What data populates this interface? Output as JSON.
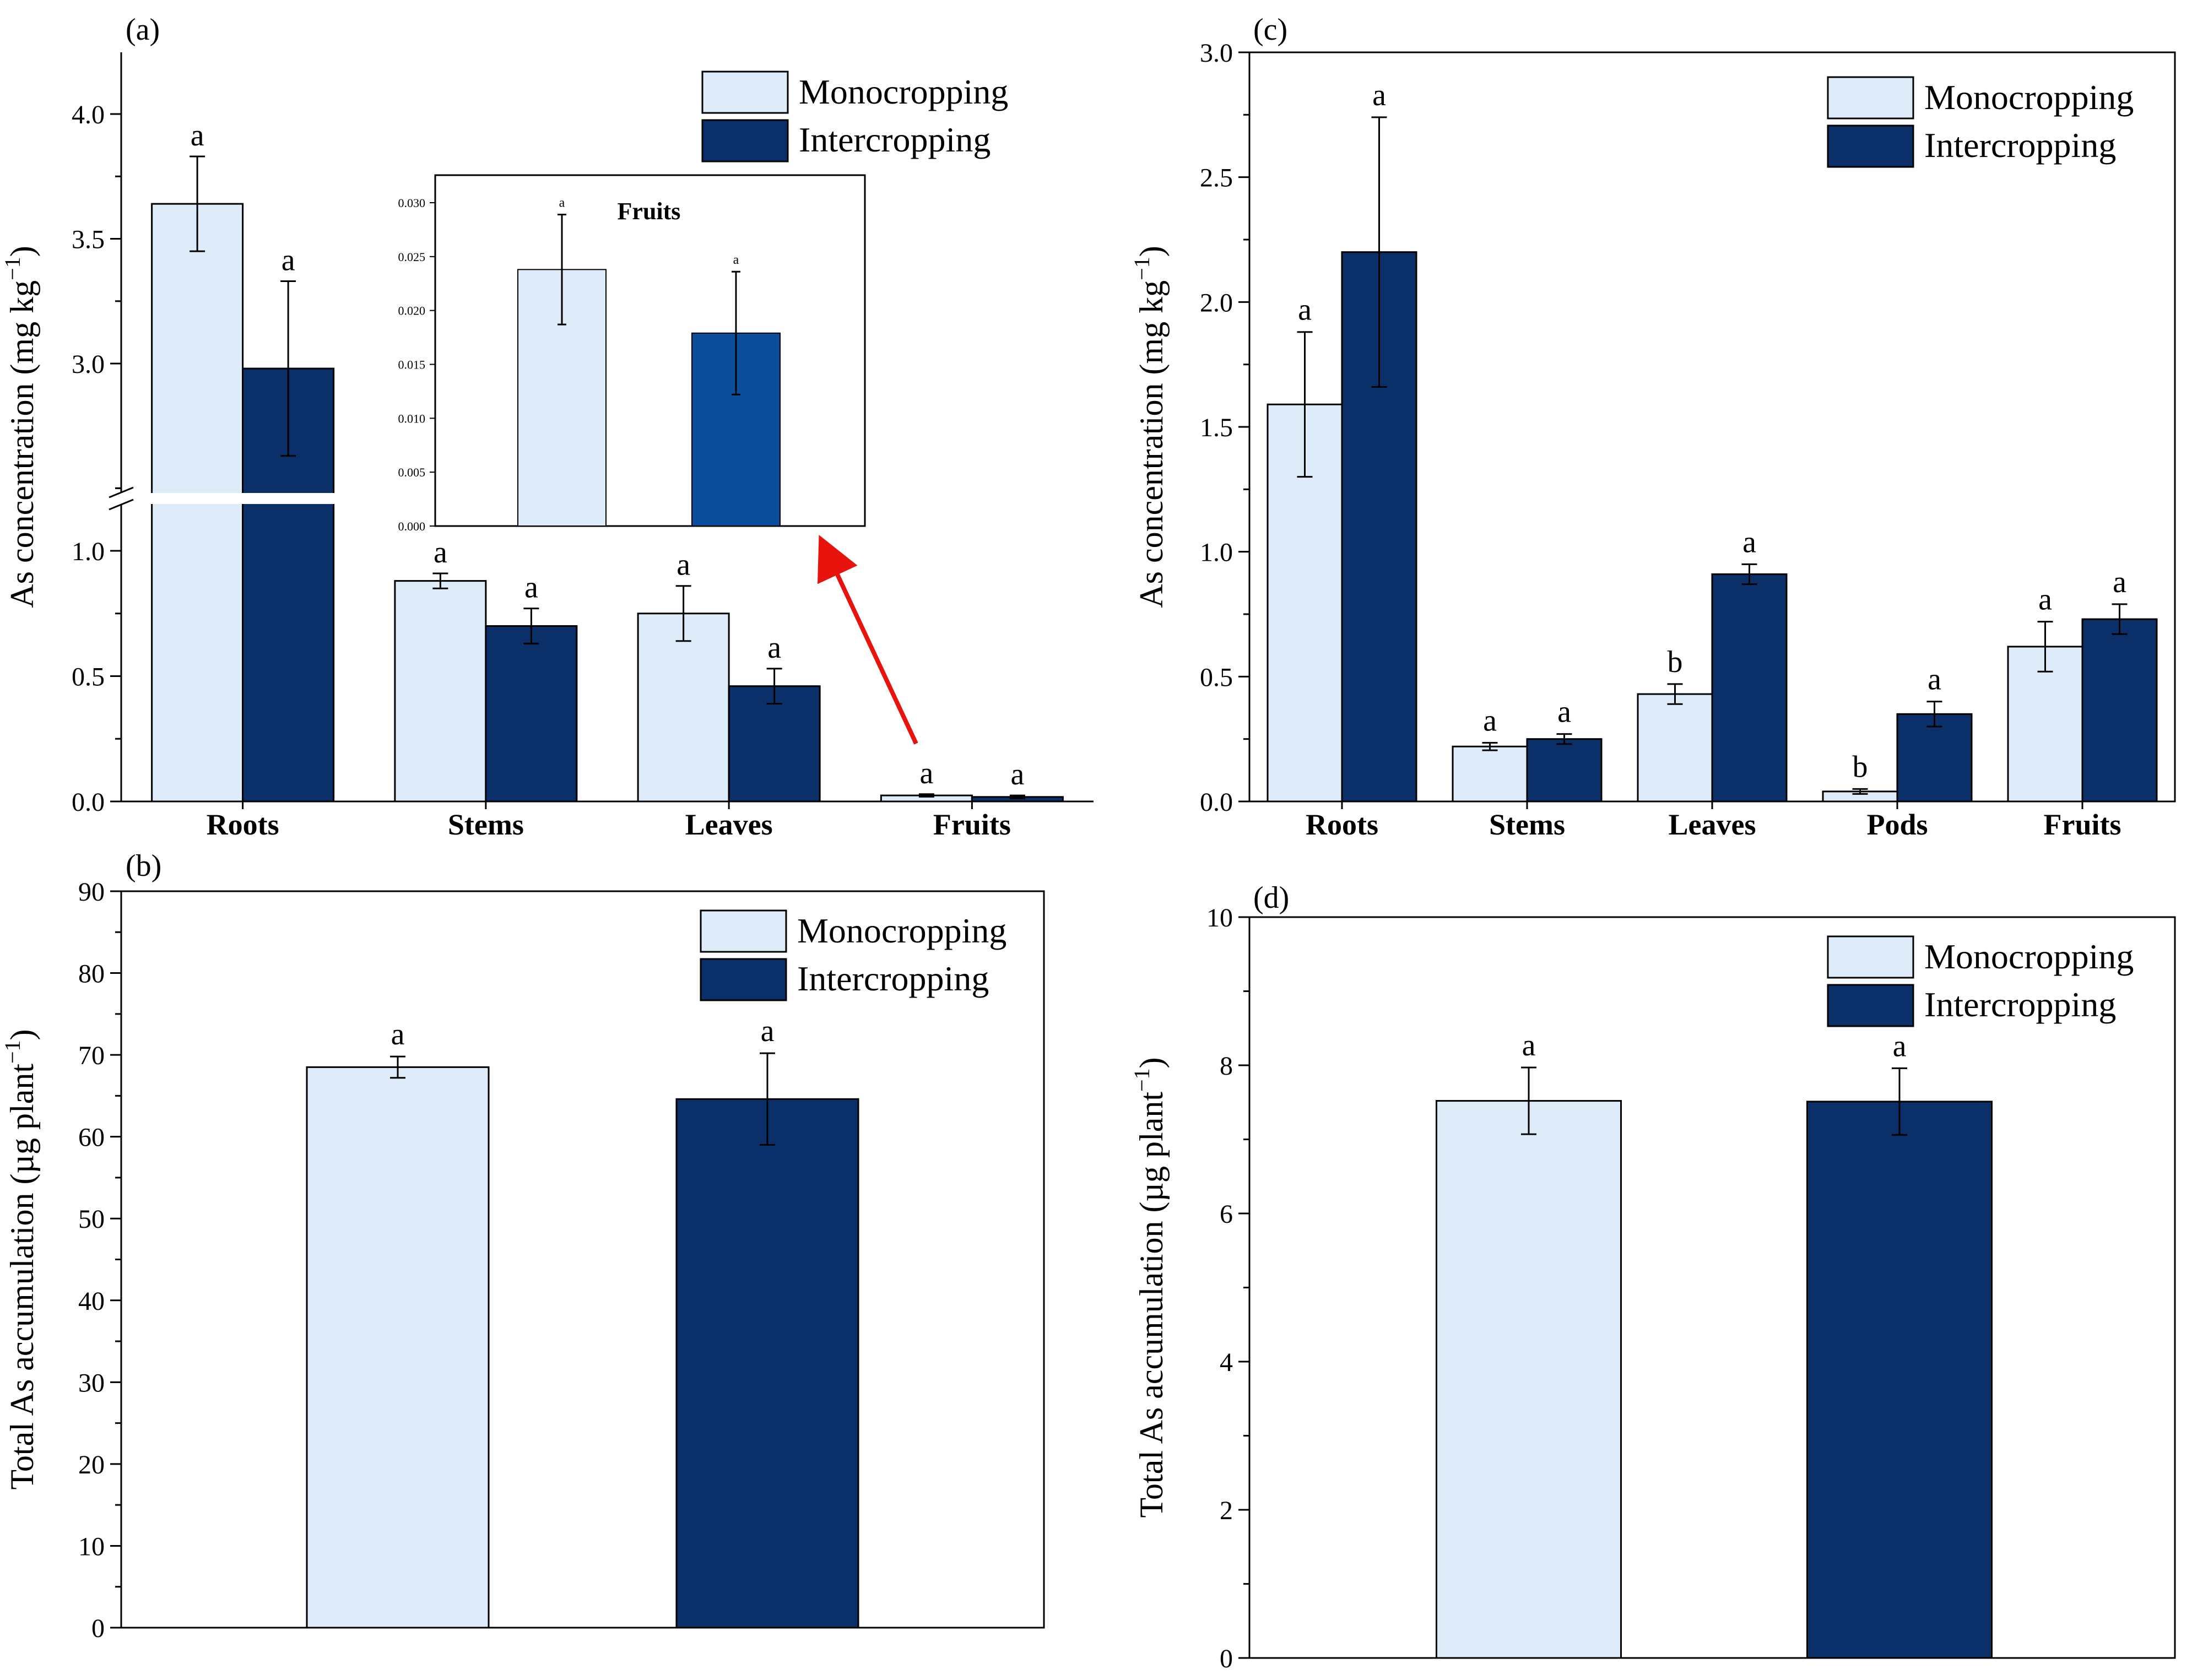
{
  "colors": {
    "monocropping": "#ddecf8",
    "intercropping": "#0a2f69",
    "inset_intercropping": "#0a4e9c",
    "arrow": "#e8130c",
    "axis": "#000000"
  },
  "legend": {
    "mono": "Monocropping",
    "inter": "Intercropping"
  },
  "chart_data": [
    {
      "id": "a",
      "panel_label": "(a)",
      "type": "bar",
      "ylabel": "As concentration (mg kg",
      "ylabel_sup": "−1",
      "ylabel_close": ")",
      "categories": [
        "Roots",
        "Stems",
        "Leaves",
        "Fruits"
      ],
      "y_break": {
        "lower": [
          0,
          1.2
        ],
        "upper": [
          2.5,
          4.3
        ]
      },
      "lower_ticks": [
        "0.0",
        "0.5",
        "1.0"
      ],
      "upper_ticks": [
        "3.0",
        "3.5",
        "4.0"
      ],
      "series": [
        {
          "name": "Monocropping",
          "values": [
            3.64,
            0.88,
            0.75,
            0.024
          ],
          "errors": [
            0.19,
            0.03,
            0.11,
            0.005
          ],
          "letters": [
            "a",
            "a",
            "a",
            "a"
          ]
        },
        {
          "name": "Intercropping",
          "values": [
            2.98,
            0.7,
            0.46,
            0.018
          ],
          "errors": [
            0.35,
            0.07,
            0.07,
            0.006
          ],
          "letters": [
            "a",
            "a",
            "a",
            "a"
          ]
        }
      ],
      "inset": {
        "title": "Fruits",
        "ylim": [
          0,
          0.03
        ],
        "ticks": [
          "0.000",
          "0.005",
          "0.010",
          "0.015",
          "0.020",
          "0.025",
          "0.030"
        ],
        "values": [
          0.0238,
          0.0179
        ],
        "errors": [
          0.0051,
          0.0057
        ],
        "letters": [
          "a",
          "a"
        ]
      }
    },
    {
      "id": "b",
      "panel_label": "(b)",
      "type": "bar",
      "ylabel": "Total As accumulation (µg plant",
      "ylabel_sup": "−1",
      "ylabel_close": ")",
      "ylim": [
        0,
        90
      ],
      "ticks": [
        "0",
        "10",
        "20",
        "30",
        "40",
        "50",
        "60",
        "70",
        "80",
        "90"
      ],
      "values": [
        68.5,
        64.6
      ],
      "errors": [
        1.3,
        5.6
      ],
      "letters": [
        "a",
        "a"
      ]
    },
    {
      "id": "c",
      "panel_label": "(c)",
      "type": "bar",
      "ylabel": "As concentration (mg kg",
      "ylabel_sup": "−1",
      "ylabel_close": ")",
      "ylim": [
        0,
        3.0
      ],
      "ticks": [
        "0.0",
        "0.5",
        "1.0",
        "1.5",
        "2.0",
        "2.5",
        "3.0"
      ],
      "categories": [
        "Roots",
        "Stems",
        "Leaves",
        "Pods",
        "Fruits"
      ],
      "series": [
        {
          "name": "Monocropping",
          "values": [
            1.59,
            0.22,
            0.43,
            0.04,
            0.62
          ],
          "errors": [
            0.29,
            0.015,
            0.04,
            0.01,
            0.1
          ],
          "letters": [
            "a",
            "a",
            "b",
            "b",
            "a"
          ]
        },
        {
          "name": "Intercropping",
          "values": [
            2.2,
            0.25,
            0.91,
            0.35,
            0.73
          ],
          "errors": [
            0.54,
            0.02,
            0.04,
            0.05,
            0.06
          ],
          "letters": [
            "a",
            "a",
            "a",
            "a",
            "a"
          ]
        }
      ]
    },
    {
      "id": "d",
      "panel_label": "(d)",
      "type": "bar",
      "ylabel": "Total As accumulation (µg plant",
      "ylabel_sup": "−1",
      "ylabel_close": ")",
      "ylim": [
        0,
        10
      ],
      "ticks": [
        "0",
        "2",
        "4",
        "6",
        "8",
        "10"
      ],
      "values": [
        7.52,
        7.51
      ],
      "errors": [
        0.45,
        0.45
      ],
      "letters": [
        "a",
        "a"
      ]
    }
  ]
}
